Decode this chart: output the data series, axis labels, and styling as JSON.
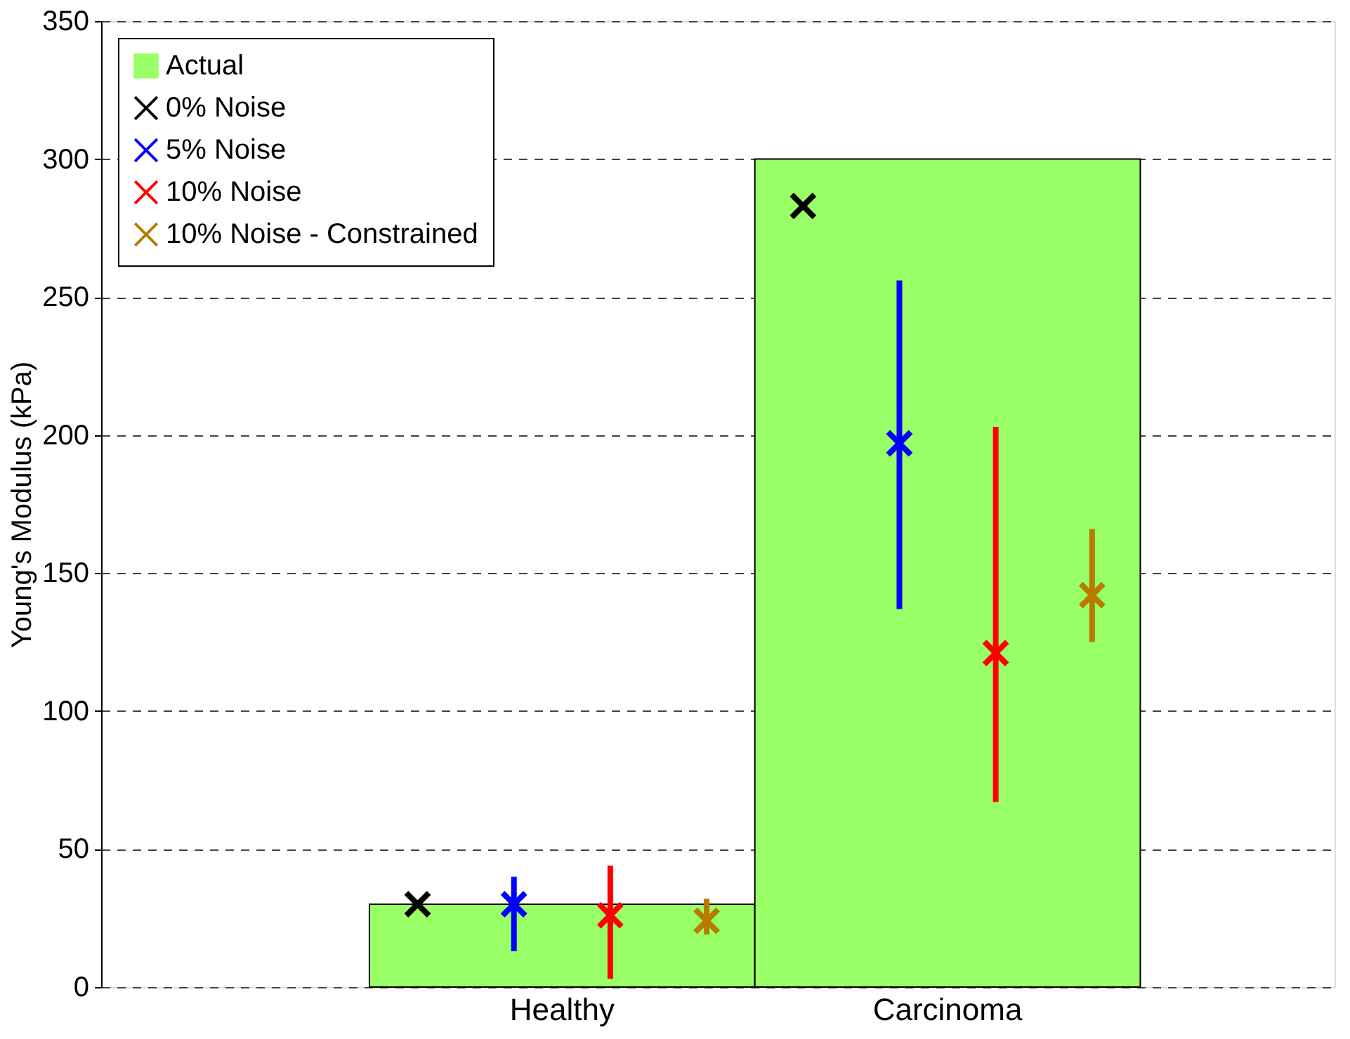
{
  "chart_data": {
    "type": "bar",
    "categories": [
      "Healthy",
      "Carcinoma"
    ],
    "ylabel": "Young's Modulus  (kPa)",
    "ylim": [
      0,
      350
    ],
    "yticks": [
      0,
      50,
      100,
      150,
      200,
      250,
      300,
      350
    ],
    "grid": "y",
    "legend": "top left",
    "marker": "cross",
    "series": [
      {
        "name": "Actual",
        "color": "#99ff66",
        "values": [
          30,
          300
        ]
      },
      {
        "name": "0% Noise",
        "type": "scatter",
        "x": [
          "Healthy",
          "Carcinoma"
        ],
        "color": "#000000",
        "values": [
          30,
          283
        ]
      },
      {
        "name": "5% Noise",
        "type": "scatter",
        "x": [
          "Healthy",
          "Carcinoma"
        ],
        "color": "#0000ff",
        "values": [
          30,
          197
        ],
        "errors": [
          [
            13,
            40
          ],
          [
            137,
            256
          ]
        ]
      },
      {
        "name": "10% Noise",
        "type": "scatter",
        "x": [
          "Healthy",
          "Carcinoma"
        ],
        "color": "#ff0000",
        "values": [
          26,
          121
        ],
        "errors": [
          [
            3,
            44
          ],
          [
            67,
            203
          ]
        ]
      },
      {
        "name": "10% Noise - Constrained",
        "type": "scatter",
        "x": [
          "Healthy",
          "Carcinoma"
        ],
        "color": "#b87b00",
        "values": [
          24,
          142
        ],
        "errors": [
          [
            19,
            32
          ],
          [
            125,
            166
          ]
        ]
      }
    ]
  }
}
